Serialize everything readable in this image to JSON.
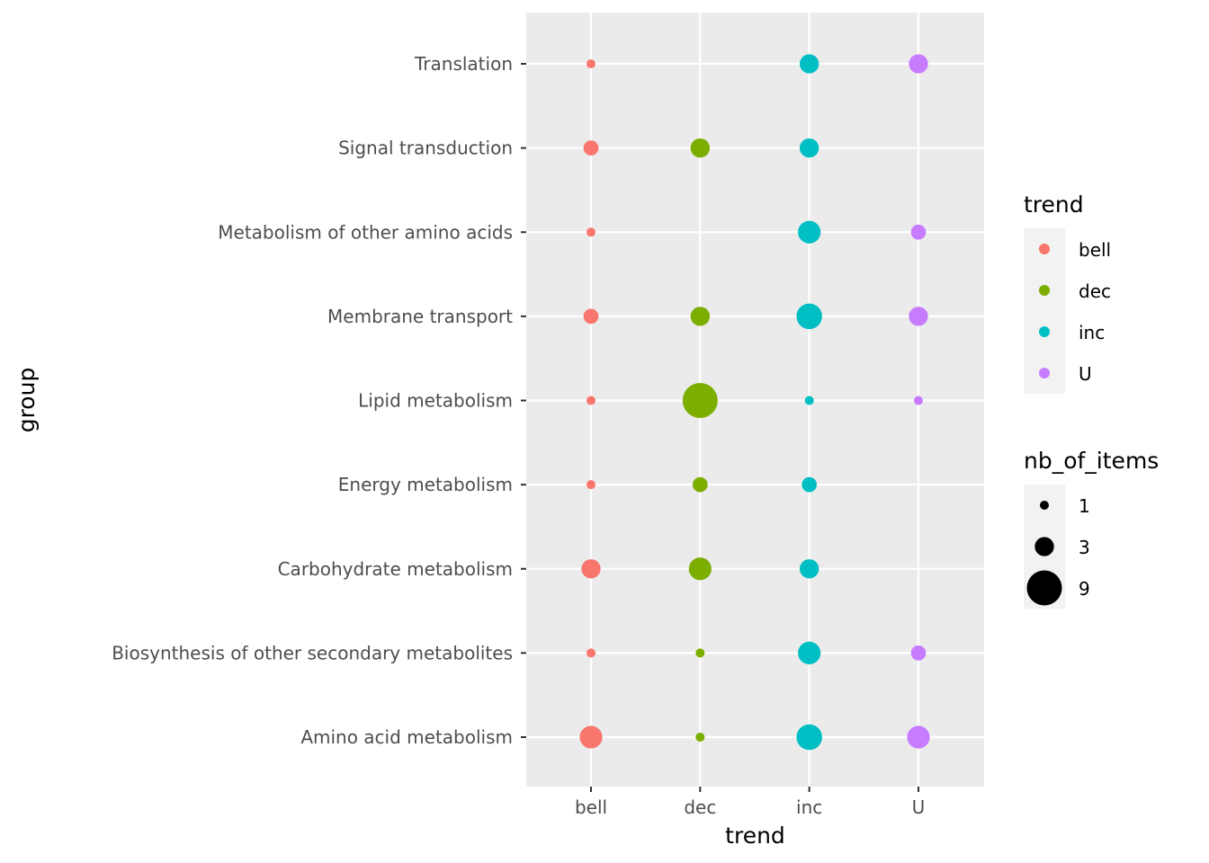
{
  "chart_data": {
    "type": "scatter",
    "title": "",
    "xlabel": "trend",
    "ylabel": "group",
    "x_categories": [
      "bell",
      "dec",
      "inc",
      "U"
    ],
    "y_categories": [
      "Amino acid metabolism",
      "Biosynthesis of other secondary metabolites",
      "Carbohydrate metabolism",
      "Energy metabolism",
      "Lipid metabolism",
      "Membrane transport",
      "Metabolism of other amino acids",
      "Signal transduction",
      "Translation"
    ],
    "colors": {
      "bell": "#F8766D",
      "dec": "#7CAE00",
      "inc": "#00BFC4",
      "U": "#C77CFF"
    },
    "panel_background": "#EBEBEB",
    "grid": true,
    "points": [
      {
        "trend": "bell",
        "group": "Translation",
        "nb_of_items": 1
      },
      {
        "trend": "inc",
        "group": "Translation",
        "nb_of_items": 3
      },
      {
        "trend": "U",
        "group": "Translation",
        "nb_of_items": 3
      },
      {
        "trend": "bell",
        "group": "Signal transduction",
        "nb_of_items": 2
      },
      {
        "trend": "dec",
        "group": "Signal transduction",
        "nb_of_items": 3
      },
      {
        "trend": "inc",
        "group": "Signal transduction",
        "nb_of_items": 3
      },
      {
        "trend": "bell",
        "group": "Metabolism of other amino acids",
        "nb_of_items": 1
      },
      {
        "trend": "inc",
        "group": "Metabolism of other amino acids",
        "nb_of_items": 4
      },
      {
        "trend": "U",
        "group": "Metabolism of other amino acids",
        "nb_of_items": 2
      },
      {
        "trend": "bell",
        "group": "Membrane transport",
        "nb_of_items": 2
      },
      {
        "trend": "dec",
        "group": "Membrane transport",
        "nb_of_items": 3
      },
      {
        "trend": "inc",
        "group": "Membrane transport",
        "nb_of_items": 5
      },
      {
        "trend": "U",
        "group": "Membrane transport",
        "nb_of_items": 3
      },
      {
        "trend": "bell",
        "group": "Lipid metabolism",
        "nb_of_items": 1
      },
      {
        "trend": "dec",
        "group": "Lipid metabolism",
        "nb_of_items": 9
      },
      {
        "trend": "inc",
        "group": "Lipid metabolism",
        "nb_of_items": 1
      },
      {
        "trend": "U",
        "group": "Lipid metabolism",
        "nb_of_items": 1
      },
      {
        "trend": "bell",
        "group": "Energy metabolism",
        "nb_of_items": 1
      },
      {
        "trend": "dec",
        "group": "Energy metabolism",
        "nb_of_items": 2
      },
      {
        "trend": "inc",
        "group": "Energy metabolism",
        "nb_of_items": 2
      },
      {
        "trend": "bell",
        "group": "Carbohydrate metabolism",
        "nb_of_items": 3
      },
      {
        "trend": "dec",
        "group": "Carbohydrate metabolism",
        "nb_of_items": 4
      },
      {
        "trend": "inc",
        "group": "Carbohydrate metabolism",
        "nb_of_items": 3
      },
      {
        "trend": "bell",
        "group": "Biosynthesis of other secondary metabolites",
        "nb_of_items": 1
      },
      {
        "trend": "dec",
        "group": "Biosynthesis of other secondary metabolites",
        "nb_of_items": 1
      },
      {
        "trend": "inc",
        "group": "Biosynthesis of other secondary metabolites",
        "nb_of_items": 4
      },
      {
        "trend": "U",
        "group": "Biosynthesis of other secondary metabolites",
        "nb_of_items": 2
      },
      {
        "trend": "bell",
        "group": "Amino acid metabolism",
        "nb_of_items": 4
      },
      {
        "trend": "dec",
        "group": "Amino acid metabolism",
        "nb_of_items": 1
      },
      {
        "trend": "inc",
        "group": "Amino acid metabolism",
        "nb_of_items": 5
      },
      {
        "trend": "U",
        "group": "Amino acid metabolism",
        "nb_of_items": 4
      }
    ],
    "size_scale": {
      "min": 1,
      "max": 9
    },
    "legend": {
      "placement": "right",
      "color_title": "trend",
      "color_entries": [
        "bell",
        "dec",
        "inc",
        "U"
      ],
      "size_title": "nb_of_items",
      "size_entries": [
        1,
        3,
        9
      ],
      "size_key_color": "#000000"
    }
  }
}
